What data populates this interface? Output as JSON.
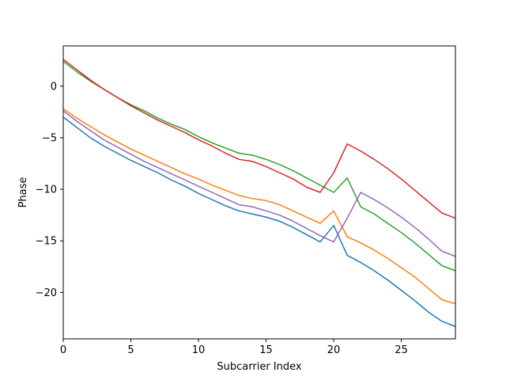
{
  "chart_data": {
    "type": "line",
    "xlabel": "Subcarrier Index",
    "ylabel": "Phase",
    "xlim": [
      0,
      29
    ],
    "ylim": [
      -24.5,
      3.9
    ],
    "xticks": [
      0,
      5,
      10,
      15,
      20,
      25
    ],
    "yticks": [
      0,
      -5,
      -10,
      -15,
      -20
    ],
    "xtick_labels": [
      "0",
      "5",
      "10",
      "15",
      "20",
      "25"
    ],
    "ytick_labels": [
      "0",
      "−5",
      "−10",
      "−15",
      "−20"
    ],
    "grid": false,
    "x": [
      0,
      1,
      2,
      3,
      4,
      5,
      6,
      7,
      8,
      9,
      10,
      11,
      12,
      13,
      14,
      15,
      16,
      17,
      18,
      19,
      20,
      21,
      22,
      23,
      24,
      25,
      26,
      27,
      28,
      29
    ],
    "series": [
      {
        "color": "#1f77b4",
        "values": [
          -3.0,
          -4.0,
          -5.0,
          -5.8,
          -6.5,
          -7.2,
          -7.8,
          -8.4,
          -9.1,
          -9.7,
          -10.4,
          -11.0,
          -11.6,
          -12.1,
          -12.4,
          -12.7,
          -13.1,
          -13.7,
          -14.4,
          -15.1,
          -13.5,
          -16.4,
          -17.1,
          -17.9,
          -18.8,
          -19.8,
          -20.8,
          -21.9,
          -22.8,
          -23.3
        ]
      },
      {
        "color": "#ff7f0e",
        "values": [
          -2.2,
          -3.1,
          -3.9,
          -4.7,
          -5.4,
          -6.1,
          -6.7,
          -7.3,
          -7.9,
          -8.5,
          -9.0,
          -9.6,
          -10.1,
          -10.6,
          -10.9,
          -11.1,
          -11.5,
          -12.1,
          -12.7,
          -13.3,
          -12.1,
          -14.6,
          -15.2,
          -15.9,
          -16.7,
          -17.6,
          -18.5,
          -19.6,
          -20.7,
          -21.1
        ]
      },
      {
        "color": "#2ca02c",
        "values": [
          2.4,
          1.4,
          0.5,
          -0.3,
          -1.1,
          -1.8,
          -2.4,
          -3.1,
          -3.7,
          -4.2,
          -4.9,
          -5.5,
          -6.0,
          -6.5,
          -6.7,
          -7.1,
          -7.6,
          -8.2,
          -8.9,
          -9.6,
          -10.3,
          -8.9,
          -11.7,
          -12.4,
          -13.3,
          -14.2,
          -15.2,
          -16.3,
          -17.4,
          -17.9
        ]
      },
      {
        "color": "#d62728",
        "values": [
          2.6,
          1.6,
          0.6,
          -0.3,
          -1.1,
          -1.9,
          -2.6,
          -3.3,
          -3.9,
          -4.5,
          -5.2,
          -5.8,
          -6.5,
          -7.1,
          -7.3,
          -7.8,
          -8.4,
          -9.0,
          -9.8,
          -10.3,
          -8.4,
          -5.6,
          -6.3,
          -7.1,
          -8.0,
          -9.0,
          -10.1,
          -11.2,
          -12.3,
          -12.8
        ]
      },
      {
        "color": "#9467bd",
        "values": [
          -2.4,
          -3.4,
          -4.3,
          -5.2,
          -5.9,
          -6.6,
          -7.3,
          -7.9,
          -8.5,
          -9.1,
          -9.7,
          -10.3,
          -10.9,
          -11.5,
          -11.7,
          -12.1,
          -12.5,
          -13.1,
          -13.8,
          -14.5,
          -15.1,
          -12.8,
          -10.3,
          -11.0,
          -11.8,
          -12.7,
          -13.7,
          -14.8,
          -16.0,
          -16.5
        ]
      }
    ]
  }
}
